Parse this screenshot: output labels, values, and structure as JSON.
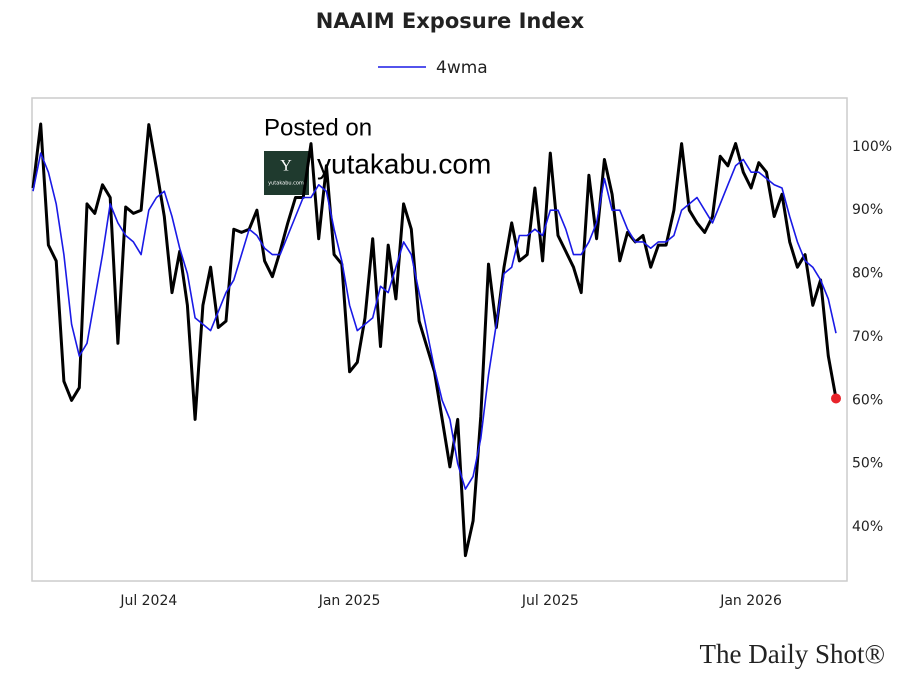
{
  "chart_data": {
    "type": "line",
    "title": "NAAIM Exposure Index",
    "categories": [
      null,
      null,
      null,
      null,
      null,
      null,
      null,
      null,
      null,
      null,
      null,
      null,
      null,
      null,
      null,
      "Jul 2024",
      null,
      null,
      null,
      null,
      null,
      null,
      null,
      null,
      null,
      null,
      null,
      null,
      null,
      null,
      null,
      null,
      null,
      null,
      null,
      null,
      null,
      null,
      null,
      null,
      null,
      "Jan 2025",
      null,
      null,
      null,
      null,
      null,
      null,
      null,
      null,
      null,
      null,
      null,
      null,
      null,
      null,
      null,
      null,
      null,
      null,
      null,
      null,
      null,
      null,
      null,
      null,
      null,
      "Jul 2025",
      null,
      null,
      null,
      null,
      null,
      null,
      null,
      null,
      null,
      null,
      null,
      null,
      null,
      null,
      null,
      null,
      null,
      null,
      null,
      null,
      null,
      null,
      null,
      null,
      null,
      "Jan 2026",
      null,
      null,
      null,
      null,
      null,
      null,
      null,
      null,
      null,
      null,
      null
    ],
    "series": [
      {
        "color": "#000000",
        "values": [
          93.5,
          103.6,
          84.5,
          82,
          63,
          60,
          62,
          91,
          89.5,
          94,
          92,
          69,
          90.5,
          89.5,
          90,
          103.5,
          96.5,
          89,
          77,
          83.5,
          75,
          57,
          75,
          81,
          71.5,
          72.5,
          87,
          86.5,
          87,
          90,
          82,
          79.5,
          83.5,
          88,
          92,
          92,
          100.5,
          85.5,
          97,
          83,
          81.5,
          64.5,
          66,
          73,
          85.5,
          68.5,
          84.5,
          76,
          91,
          87,
          72.5,
          68.5,
          64.5,
          57,
          49.5,
          57,
          35.5,
          41,
          57.5,
          81.5,
          71.5,
          81,
          88,
          82,
          83,
          93.5,
          82,
          99,
          86,
          83.5,
          81,
          77,
          95.5,
          85.5,
          98,
          92.5,
          82,
          86.5,
          85,
          86,
          81,
          84.5,
          84.5,
          90,
          100.5,
          90,
          88,
          86.5,
          89,
          98.5,
          97,
          100.5,
          96,
          93.5,
          97.5,
          96,
          89,
          92.5,
          85,
          81,
          83,
          75,
          79,
          67,
          60.3
        ]
      },
      {
        "name": "4wma",
        "color": "#1a1ae6",
        "values": [
          93,
          99,
          96,
          91,
          83,
          72,
          67,
          69,
          76,
          83,
          91,
          88,
          86,
          85,
          83,
          90,
          92,
          93,
          89,
          84,
          80,
          73,
          72,
          71,
          74,
          77,
          79,
          83,
          87,
          86,
          84,
          83,
          83,
          86,
          89,
          92,
          92,
          94,
          93,
          87,
          82,
          75,
          71,
          72,
          73,
          78,
          77,
          81,
          85,
          83,
          77,
          71,
          65,
          60,
          57,
          50,
          46,
          48,
          54,
          64,
          72,
          80,
          81,
          86,
          86,
          87,
          86,
          90,
          90,
          87,
          83,
          83,
          85,
          88,
          95,
          90,
          90,
          87,
          85,
          85,
          84,
          85,
          85,
          86,
          90,
          91,
          92,
          90,
          88,
          91,
          94,
          97,
          98,
          96,
          96,
          95,
          94,
          93.5,
          89,
          85,
          82,
          81,
          79,
          76,
          70.6
        ]
      }
    ],
    "end_marker_color": "#e8242b",
    "ylim": [
      31.5,
      107.7
    ],
    "yticks": [
      {
        "value": 40,
        "label": "40%"
      },
      {
        "value": 50,
        "label": "50%"
      },
      {
        "value": 60,
        "label": "60%"
      },
      {
        "value": 70,
        "label": "70%"
      },
      {
        "value": 80,
        "label": "80%"
      },
      {
        "value": 90,
        "label": "90%"
      },
      {
        "value": 100,
        "label": "100%"
      }
    ],
    "y_axis_side": "right",
    "grid": false,
    "legend": "top",
    "watermark": {
      "line1": "Posted on",
      "line2": "yutakabu.com",
      "logo_letter": "Y",
      "logo_text": "yutakabu.com"
    },
    "source": "The Daily Shot®"
  }
}
